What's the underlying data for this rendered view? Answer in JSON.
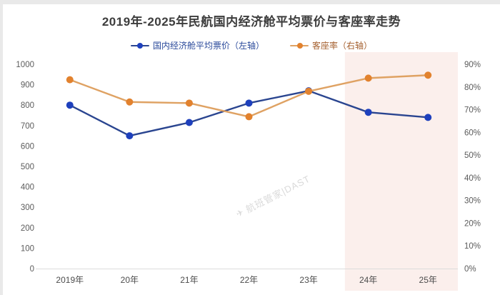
{
  "title": "2019年-2025年民航国内经济舱平均票价与客座率走势",
  "legend": [
    {
      "label": "国内经济舱平均票价（左轴）",
      "line_color": "#2a4590",
      "dot_color": "#1e40bd",
      "text_color": "#2b4a9b"
    },
    {
      "label": "客座率（右轴）",
      "line_color": "#dfa263",
      "dot_color": "#e2822e",
      "text_color": "#a5602f"
    }
  ],
  "watermark": {
    "icon": "✈",
    "text": "航班管家|DAST"
  },
  "chart_data": {
    "type": "line",
    "categories": [
      "2019年",
      "20年",
      "21年",
      "22年",
      "23年",
      "24年",
      "25年"
    ],
    "series": [
      {
        "name": "国内经济舱平均票价（左轴）",
        "axis": "left",
        "values": [
          800,
          650,
          715,
          810,
          870,
          765,
          740
        ],
        "line_color": "#2a4590",
        "dot_color": "#1e40bd"
      },
      {
        "name": "客座率（右轴）",
        "axis": "right",
        "values": [
          83.2,
          73.4,
          72.9,
          66.9,
          78.1,
          83.9,
          85.2
        ],
        "unit": "%",
        "line_color": "#dfa263",
        "dot_color": "#e2822e"
      }
    ],
    "left_axis": {
      "min": 0,
      "max": 1000,
      "step": 100
    },
    "right_axis": {
      "min": 0,
      "max": 90,
      "step": 10,
      "suffix": "%"
    },
    "highlight_region": {
      "categories": [
        "24年",
        "25年"
      ],
      "color": "#fbefec"
    },
    "grid": false,
    "legend_position": "top",
    "colors": {
      "axis_line": "#dcdcdc",
      "tick_text": "#5b5b5b",
      "category_text": "#4d4d4d"
    }
  }
}
